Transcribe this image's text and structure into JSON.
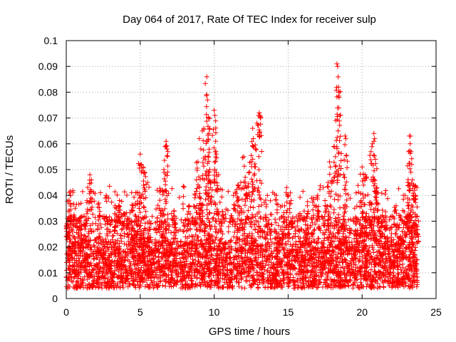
{
  "chart_data": {
    "type": "scatter",
    "title": "Day 064 of 2017, Rate Of TEC Index for receiver sulp",
    "xlabel": "GPS time / hours",
    "ylabel": "ROTI / TECUs",
    "xlim": [
      0,
      25
    ],
    "ylim": [
      0,
      0.1
    ],
    "x_ticks": [
      0,
      5,
      10,
      15,
      20,
      25
    ],
    "y_ticks": [
      0,
      0.01,
      0.02,
      0.03,
      0.04,
      0.05,
      0.06,
      0.07,
      0.08,
      0.09,
      0.1
    ],
    "x_tick_labels": [
      "0",
      "5",
      "10",
      "15",
      "20",
      "25"
    ],
    "y_tick_labels": [
      "0",
      "0.01",
      "0.02",
      "0.03",
      "0.04",
      "0.05",
      "0.06",
      "0.07",
      "0.08",
      "0.09",
      "0.1"
    ],
    "grid": true,
    "marker": "+",
    "marker_color": "#ff0000",
    "series": [
      {
        "data_range_hours": [
          0,
          23.75
        ],
        "baseline_band": [
          0.004,
          0.022
        ],
        "points": [
          [
            0.05,
            0.029
          ],
          [
            0.2,
            0.041
          ],
          [
            0.3,
            0.04
          ],
          [
            0.6,
            0.035
          ],
          [
            0.9,
            0.031
          ],
          [
            1.4,
            0.038
          ],
          [
            1.6,
            0.048
          ],
          [
            1.7,
            0.046
          ],
          [
            2.2,
            0.037
          ],
          [
            2.7,
            0.04
          ],
          [
            3.3,
            0.036
          ],
          [
            3.6,
            0.038
          ],
          [
            3.9,
            0.033
          ],
          [
            4.5,
            0.036
          ],
          [
            4.7,
            0.041
          ],
          [
            5.0,
            0.056
          ],
          [
            5.05,
            0.052
          ],
          [
            5.2,
            0.051
          ],
          [
            5.3,
            0.049
          ],
          [
            5.5,
            0.045
          ],
          [
            6.3,
            0.035
          ],
          [
            6.5,
            0.042
          ],
          [
            6.6,
            0.05
          ],
          [
            6.7,
            0.059
          ],
          [
            6.75,
            0.061
          ],
          [
            6.8,
            0.058
          ],
          [
            7.3,
            0.034
          ],
          [
            8.3,
            0.036
          ],
          [
            8.7,
            0.039
          ],
          [
            8.8,
            0.046
          ],
          [
            8.9,
            0.053
          ],
          [
            9.0,
            0.062
          ],
          [
            9.1,
            0.058
          ],
          [
            9.2,
            0.065
          ],
          [
            9.3,
            0.066
          ],
          [
            9.4,
            0.055
          ],
          [
            9.5,
            0.086
          ],
          [
            9.55,
            0.077
          ],
          [
            9.6,
            0.07
          ],
          [
            9.65,
            0.064
          ],
          [
            9.7,
            0.05
          ],
          [
            9.75,
            0.045
          ],
          [
            10.0,
            0.073
          ],
          [
            10.05,
            0.071
          ],
          [
            10.1,
            0.061
          ],
          [
            10.15,
            0.056
          ],
          [
            10.3,
            0.048
          ],
          [
            11.3,
            0.04
          ],
          [
            11.6,
            0.044
          ],
          [
            11.8,
            0.045
          ],
          [
            12.0,
            0.055
          ],
          [
            12.1,
            0.047
          ],
          [
            12.2,
            0.043
          ],
          [
            12.4,
            0.049
          ],
          [
            12.5,
            0.053
          ],
          [
            12.6,
            0.066
          ],
          [
            12.65,
            0.062
          ],
          [
            12.8,
            0.058
          ],
          [
            13.0,
            0.071
          ],
          [
            13.05,
            0.072
          ],
          [
            13.1,
            0.071
          ],
          [
            13.6,
            0.04
          ],
          [
            14.2,
            0.04
          ],
          [
            14.6,
            0.036
          ],
          [
            14.9,
            0.043
          ],
          [
            15.2,
            0.038
          ],
          [
            15.8,
            0.033
          ],
          [
            16.3,
            0.036
          ],
          [
            16.7,
            0.039
          ],
          [
            17.0,
            0.04
          ],
          [
            17.5,
            0.036
          ],
          [
            17.7,
            0.045
          ],
          [
            17.8,
            0.053
          ],
          [
            17.85,
            0.051
          ],
          [
            18.1,
            0.059
          ],
          [
            18.2,
            0.055
          ],
          [
            18.3,
            0.091
          ],
          [
            18.35,
            0.09
          ],
          [
            18.4,
            0.082
          ],
          [
            18.45,
            0.078
          ],
          [
            18.5,
            0.071
          ],
          [
            18.8,
            0.047
          ],
          [
            18.85,
            0.063
          ],
          [
            18.9,
            0.062
          ],
          [
            19.5,
            0.035
          ],
          [
            20.0,
            0.051
          ],
          [
            20.1,
            0.044
          ],
          [
            20.2,
            0.048
          ],
          [
            20.3,
            0.033
          ],
          [
            20.6,
            0.057
          ],
          [
            20.7,
            0.06
          ],
          [
            20.8,
            0.064
          ],
          [
            20.85,
            0.062
          ],
          [
            20.9,
            0.054
          ],
          [
            21.0,
            0.043
          ],
          [
            21.1,
            0.041
          ],
          [
            21.6,
            0.032
          ],
          [
            22.3,
            0.036
          ],
          [
            22.6,
            0.032
          ],
          [
            22.9,
            0.04
          ],
          [
            23.1,
            0.045
          ],
          [
            23.15,
            0.057
          ],
          [
            23.2,
            0.063
          ],
          [
            23.25,
            0.06
          ],
          [
            23.3,
            0.049
          ],
          [
            23.4,
            0.046
          ],
          [
            23.5,
            0.044
          ],
          [
            23.6,
            0.04
          ],
          [
            23.7,
            0.032
          ]
        ]
      }
    ]
  }
}
